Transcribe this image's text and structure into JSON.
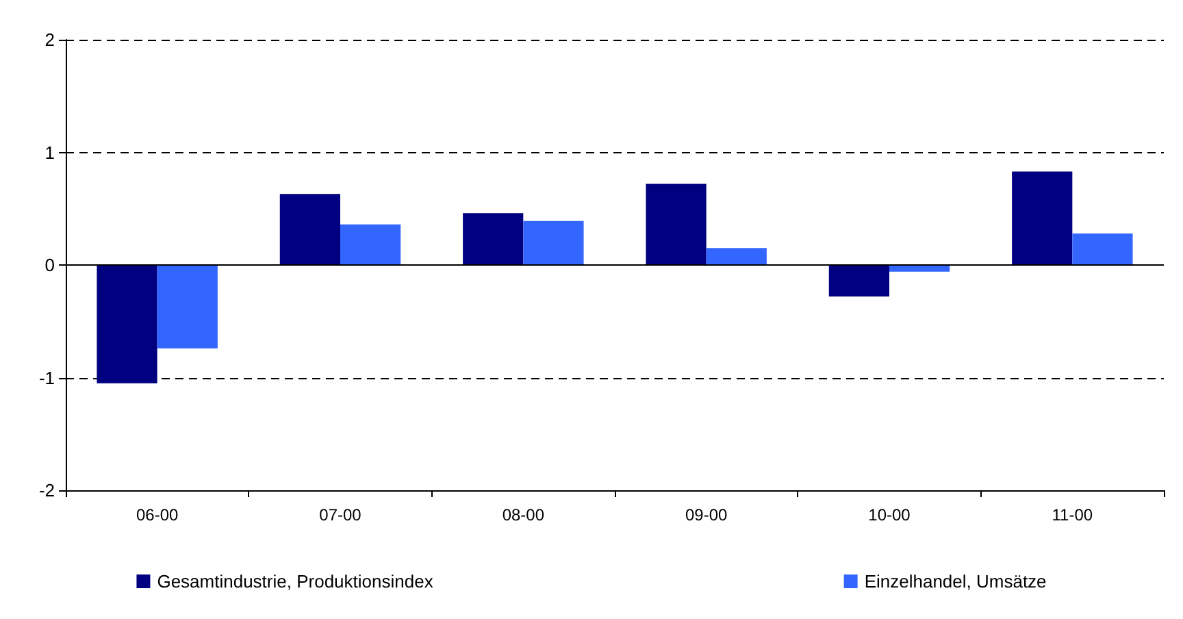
{
  "chart_data": {
    "type": "bar",
    "categories": [
      "06-00",
      "07-00",
      "08-00",
      "09-00",
      "10-00",
      "11-00"
    ],
    "series": [
      {
        "name": "Gesamtindustrie, Produktionsindex",
        "color": "#000080",
        "values": [
          -1.05,
          0.63,
          0.46,
          0.72,
          -0.28,
          0.83
        ]
      },
      {
        "name": "Einzelhandel, Umsätze",
        "color": "#3366ff",
        "values": [
          -0.74,
          0.36,
          0.39,
          0.15,
          -0.06,
          0.28
        ]
      }
    ],
    "ylim": [
      -2,
      2
    ],
    "yticks": [
      -2,
      -1,
      0,
      1,
      2
    ],
    "grid": "y",
    "legend": "bottom"
  }
}
